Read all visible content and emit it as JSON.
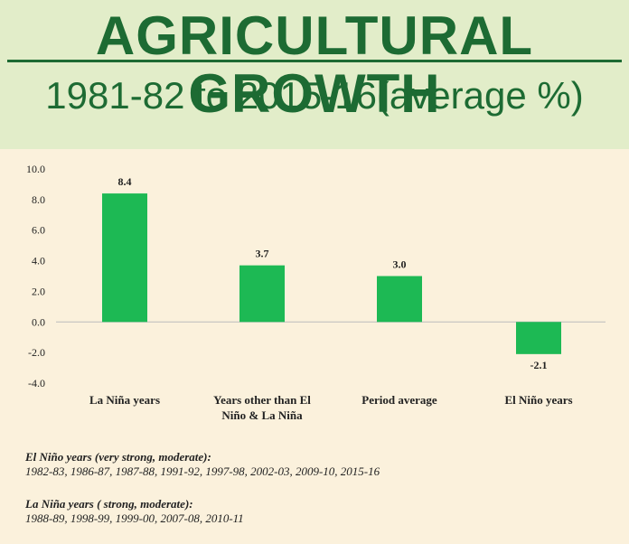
{
  "header": {
    "title": "AGRICULTURAL GROWTH",
    "subtitle": "1981-82 to 2015-16(average %)"
  },
  "colors": {
    "bar": "#1db954",
    "title": "#1d6b33",
    "header_bg": "#e2edc9",
    "page_bg": "#fbf1dc"
  },
  "chart_data": {
    "type": "bar",
    "title": "",
    "xlabel": "",
    "ylabel": "",
    "categories": [
      "La Niña years",
      "Years other than El Niño & La Niña",
      "Period average",
      "El Niño years"
    ],
    "category_lines": [
      [
        "La Niña years"
      ],
      [
        "Years other than El",
        "Niño & La Niña"
      ],
      [
        "Period average"
      ],
      [
        "El Niño years"
      ]
    ],
    "values": [
      8.4,
      3.7,
      3.0,
      -2.1
    ],
    "value_labels": [
      "8.4",
      "3.7",
      "3.0",
      "-2.1"
    ],
    "ylim": [
      -4.0,
      10.0
    ],
    "yticks": [
      "10.0",
      "8.0",
      "6.0",
      "4.0",
      "2.0",
      "0.0",
      "-2.0",
      "-4.0"
    ],
    "grid": false,
    "legend": "none"
  },
  "notes": [
    {
      "title": "El Niño years (very strong, moderate):",
      "years": "1982-83, 1986-87, 1987-88, 1991-92, 1997-98, 2002-03, 2009-10, 2015-16"
    },
    {
      "title": "La Niña years ( strong,  moderate):",
      "years": "1988-89, 1998-99, 1999-00, 2007-08, 2010-11"
    }
  ]
}
